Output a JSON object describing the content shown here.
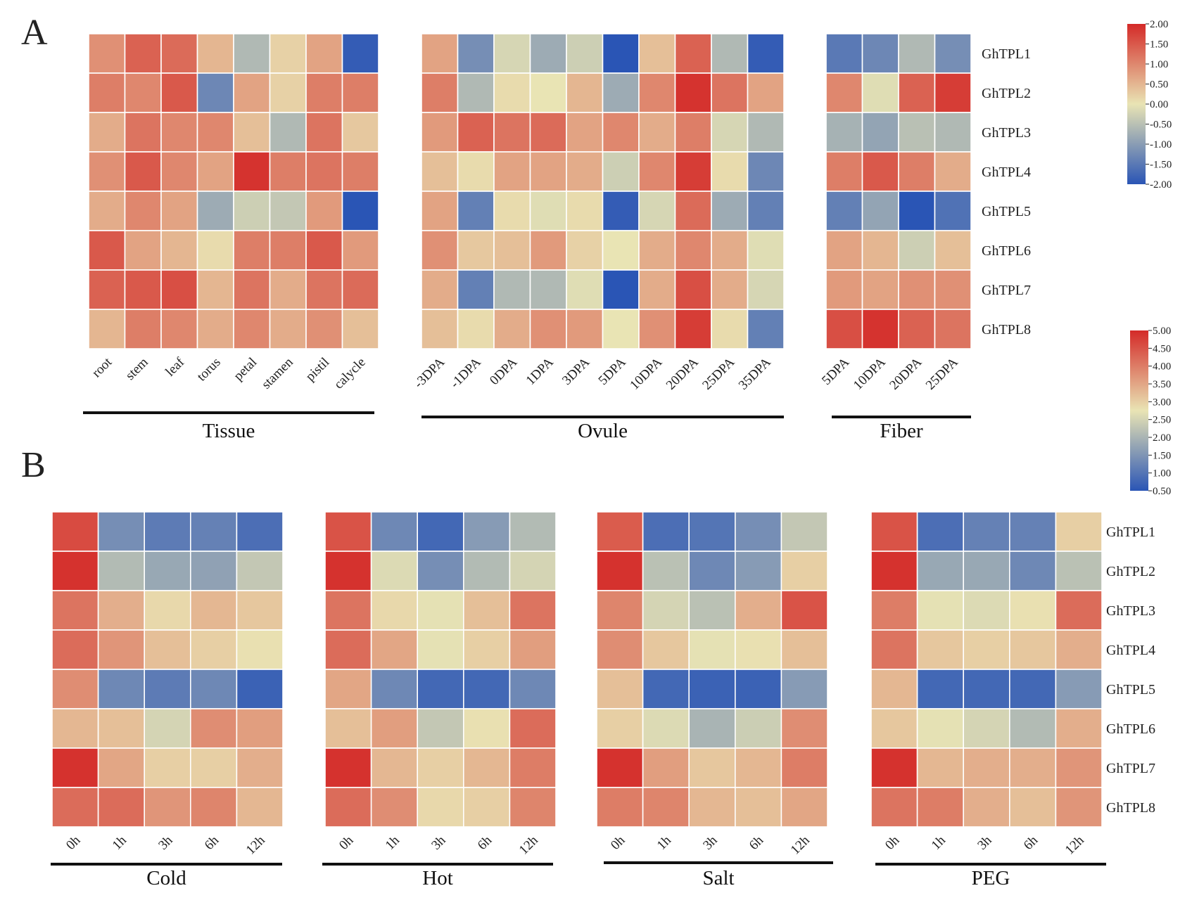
{
  "panel_labels": [
    "A",
    "B"
  ],
  "chart_data": [
    {
      "type": "heatmap",
      "panel": "A",
      "group_label": "Tissue",
      "rows": [
        "GhTPL1",
        "GhTPL2",
        "GhTPL3",
        "GhTPL4",
        "GhTPL5",
        "GhTPL6",
        "GhTPL7",
        "GhTPL8"
      ],
      "columns": [
        "root",
        "stem",
        "leaf",
        "torus",
        "petal",
        "stamen",
        "pistil",
        "calycle"
      ],
      "scale": "A",
      "values": [
        [
          0.9,
          1.4,
          1.3,
          0.5,
          -0.6,
          0.2,
          0.7,
          -1.9
        ],
        [
          1.1,
          1.0,
          1.5,
          -1.3,
          0.7,
          0.2,
          1.1,
          1.1
        ],
        [
          0.6,
          1.2,
          1.0,
          1.0,
          0.4,
          -0.6,
          1.2,
          0.3
        ],
        [
          0.9,
          1.5,
          1.0,
          0.7,
          1.9,
          1.1,
          1.2,
          1.1
        ],
        [
          0.6,
          1.0,
          0.7,
          -0.8,
          -0.3,
          -0.4,
          0.8,
          -2.0
        ],
        [
          1.5,
          0.7,
          0.5,
          0.1,
          1.1,
          1.1,
          1.5,
          0.8
        ],
        [
          1.4,
          1.5,
          1.6,
          0.5,
          1.2,
          0.6,
          1.2,
          1.3
        ],
        [
          0.5,
          1.1,
          1.0,
          0.6,
          1.0,
          0.6,
          0.9,
          0.4
        ]
      ]
    },
    {
      "type": "heatmap",
      "panel": "A",
      "group_label": "Ovule",
      "rows": [
        "GhTPL1",
        "GhTPL2",
        "GhTPL3",
        "GhTPL4",
        "GhTPL5",
        "GhTPL6",
        "GhTPL7",
        "GhTPL8"
      ],
      "columns": [
        "-3DPA",
        "-1DPA",
        "0DPA",
        "1DPA",
        "3DPA",
        "5DPA",
        "10DPA",
        "20DPA",
        "25DPA",
        "35DPA"
      ],
      "scale": "A",
      "values": [
        [
          0.7,
          -1.2,
          -0.2,
          -0.8,
          -0.3,
          -2.0,
          0.4,
          1.4,
          -0.6,
          -1.9
        ],
        [
          1.1,
          -0.6,
          0.1,
          0.0,
          0.5,
          -0.8,
          1.0,
          1.9,
          1.2,
          0.7
        ],
        [
          0.8,
          1.4,
          1.2,
          1.3,
          0.7,
          1.0,
          0.6,
          1.1,
          -0.2,
          -0.6
        ],
        [
          0.4,
          0.1,
          0.7,
          0.7,
          0.6,
          -0.3,
          1.0,
          1.8,
          0.1,
          -1.3
        ],
        [
          0.7,
          -1.4,
          0.1,
          -0.1,
          0.1,
          -1.9,
          -0.2,
          1.3,
          -0.8,
          -1.4
        ],
        [
          0.9,
          0.3,
          0.4,
          0.8,
          0.2,
          0.0,
          0.6,
          1.0,
          0.6,
          -0.1
        ],
        [
          0.6,
          -1.4,
          -0.6,
          -0.6,
          -0.1,
          -2.0,
          0.6,
          1.6,
          0.6,
          -0.2
        ],
        [
          0.4,
          0.1,
          0.6,
          0.9,
          0.8,
          0.0,
          0.9,
          1.8,
          0.1,
          -1.4
        ]
      ]
    },
    {
      "type": "heatmap",
      "panel": "A",
      "group_label": "Fiber",
      "rows": [
        "GhTPL1",
        "GhTPL2",
        "GhTPL3",
        "GhTPL4",
        "GhTPL5",
        "GhTPL6",
        "GhTPL7",
        "GhTPL8"
      ],
      "columns": [
        "5DPA",
        "10DPA",
        "20DPA",
        "25DPA"
      ],
      "scale": "A",
      "values": [
        [
          -1.5,
          -1.3,
          -0.6,
          -1.2
        ],
        [
          1.0,
          -0.1,
          1.4,
          1.8
        ],
        [
          -0.7,
          -0.9,
          -0.5,
          -0.6
        ],
        [
          1.1,
          1.5,
          1.1,
          0.6
        ],
        [
          -1.4,
          -0.9,
          -2.0,
          -1.6
        ],
        [
          0.7,
          0.5,
          -0.3,
          0.4
        ],
        [
          0.8,
          0.7,
          0.9,
          0.9
        ],
        [
          1.6,
          1.9,
          1.4,
          1.2
        ]
      ]
    },
    {
      "type": "heatmap",
      "panel": "B",
      "group_label": "Cold",
      "rows": [
        "GhTPL1",
        "GhTPL2",
        "GhTPL3",
        "GhTPL4",
        "GhTPL5",
        "GhTPL6",
        "GhTPL7",
        "GhTPL8"
      ],
      "columns": [
        "0h",
        "1h",
        "3h",
        "6h",
        "12h"
      ],
      "scale": "B",
      "values": [
        [
          4.6,
          1.4,
          1.1,
          1.2,
          0.9
        ],
        [
          4.9,
          2.1,
          1.8,
          1.7,
          2.3
        ],
        [
          4.1,
          3.4,
          2.9,
          3.3,
          3.1
        ],
        [
          4.2,
          3.7,
          3.2,
          3.0,
          2.8
        ],
        [
          3.8,
          1.3,
          1.1,
          1.3,
          0.7
        ],
        [
          3.3,
          3.2,
          2.5,
          3.8,
          3.6
        ],
        [
          4.9,
          3.5,
          3.0,
          3.0,
          3.4
        ],
        [
          4.2,
          4.2,
          3.7,
          3.9,
          3.3
        ]
      ]
    },
    {
      "type": "heatmap",
      "panel": "B",
      "group_label": "Hot",
      "rows": [
        "GhTPL1",
        "GhTPL2",
        "GhTPL3",
        "GhTPL4",
        "GhTPL5",
        "GhTPL6",
        "GhTPL7",
        "GhTPL8"
      ],
      "columns": [
        "0h",
        "1h",
        "3h",
        "6h",
        "12h"
      ],
      "scale": "B",
      "values": [
        [
          4.5,
          1.3,
          0.8,
          1.6,
          2.1
        ],
        [
          4.9,
          2.6,
          1.4,
          2.1,
          2.5
        ],
        [
          4.1,
          2.9,
          2.7,
          3.2,
          4.1
        ],
        [
          4.2,
          3.5,
          2.7,
          3.0,
          3.6
        ],
        [
          3.5,
          1.3,
          0.8,
          0.8,
          1.3
        ],
        [
          3.2,
          3.6,
          2.3,
          2.8,
          4.2
        ],
        [
          4.9,
          3.3,
          3.0,
          3.3,
          4.0
        ],
        [
          4.2,
          3.8,
          2.9,
          3.0,
          3.9
        ]
      ]
    },
    {
      "type": "heatmap",
      "panel": "B",
      "group_label": "Salt",
      "rows": [
        "GhTPL1",
        "GhTPL2",
        "GhTPL3",
        "GhTPL4",
        "GhTPL5",
        "GhTPL6",
        "GhTPL7",
        "GhTPL8"
      ],
      "columns": [
        "0h",
        "1h",
        "3h",
        "6h",
        "12h"
      ],
      "scale": "B",
      "values": [
        [
          4.4,
          0.9,
          1.0,
          1.4,
          2.3
        ],
        [
          4.9,
          2.2,
          1.3,
          1.6,
          3.0
        ],
        [
          3.9,
          2.5,
          2.2,
          3.4,
          4.5
        ],
        [
          3.8,
          3.1,
          2.7,
          2.8,
          3.2
        ],
        [
          3.2,
          0.8,
          0.7,
          0.7,
          1.6
        ],
        [
          3.0,
          2.6,
          2.0,
          2.4,
          3.8
        ],
        [
          4.9,
          3.6,
          3.1,
          3.3,
          4.0
        ],
        [
          4.0,
          3.9,
          3.3,
          3.2,
          3.5
        ]
      ]
    },
    {
      "type": "heatmap",
      "panel": "B",
      "group_label": "PEG",
      "rows": [
        "GhTPL1",
        "GhTPL2",
        "GhTPL3",
        "GhTPL4",
        "GhTPL5",
        "GhTPL6",
        "GhTPL7",
        "GhTPL8"
      ],
      "columns": [
        "0h",
        "1h",
        "3h",
        "6h",
        "12h"
      ],
      "scale": "B",
      "values": [
        [
          4.5,
          0.9,
          1.2,
          1.2,
          3.0
        ],
        [
          4.9,
          1.8,
          1.8,
          1.3,
          2.2
        ],
        [
          4.0,
          2.7,
          2.6,
          2.8,
          4.2
        ],
        [
          4.1,
          3.1,
          3.0,
          3.1,
          3.4
        ],
        [
          3.3,
          0.8,
          0.8,
          0.8,
          1.6
        ],
        [
          3.1,
          2.7,
          2.5,
          2.1,
          3.4
        ],
        [
          4.9,
          3.3,
          3.4,
          3.4,
          3.7
        ],
        [
          4.1,
          4.0,
          3.4,
          3.2,
          3.7
        ]
      ]
    }
  ],
  "color_scales": {
    "A": {
      "min": -2.0,
      "max": 2.0,
      "ticks": [
        "2.00",
        "1.50",
        "1.00",
        "0.50",
        "0.00",
        "-0.50",
        "-1.00",
        "-1.50",
        "-2.00"
      ],
      "colors": [
        "#2a55b5",
        "#e9e4b4",
        "#d42a28"
      ]
    },
    "B": {
      "min": 0.5,
      "max": 5.0,
      "ticks": [
        "5.00",
        "4.50",
        "4.00",
        "3.50",
        "3.00",
        "2.50",
        "2.00",
        "1.50",
        "1.00",
        "0.50"
      ],
      "colors": [
        "#2a55b5",
        "#e9e4b4",
        "#d42a28"
      ]
    }
  }
}
